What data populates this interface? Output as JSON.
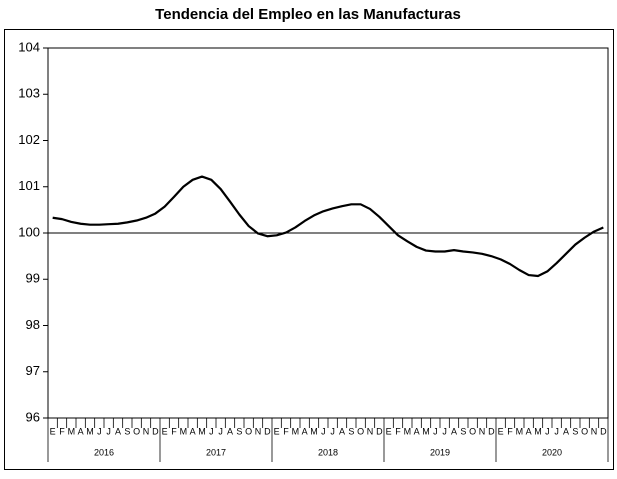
{
  "chart_data": {
    "type": "line",
    "title": "Tendencia del Empleo en las Manufacturas",
    "categories": [
      "E",
      "F",
      "M",
      "A",
      "M",
      "J",
      "J",
      "A",
      "S",
      "O",
      "N",
      "D",
      "E",
      "F",
      "M",
      "A",
      "M",
      "J",
      "J",
      "A",
      "S",
      "O",
      "N",
      "D",
      "E",
      "F",
      "M",
      "A",
      "M",
      "J",
      "J",
      "A",
      "S",
      "O",
      "N",
      "D",
      "E",
      "F",
      "M",
      "A",
      "M",
      "J",
      "J",
      "A",
      "S",
      "O",
      "N",
      "D",
      "E",
      "F",
      "M",
      "A",
      "M",
      "J",
      "J",
      "A",
      "S",
      "O",
      "N",
      "D"
    ],
    "years": [
      "2016",
      "2017",
      "2018",
      "2019",
      "2020"
    ],
    "values": [
      100.33,
      100.3,
      100.24,
      100.2,
      100.18,
      100.18,
      100.19,
      100.2,
      100.23,
      100.27,
      100.33,
      100.42,
      100.57,
      100.78,
      101.0,
      101.15,
      101.22,
      101.15,
      100.95,
      100.68,
      100.4,
      100.15,
      99.99,
      99.93,
      99.95,
      100.01,
      100.12,
      100.26,
      100.38,
      100.47,
      100.53,
      100.58,
      100.62,
      100.62,
      100.52,
      100.35,
      100.15,
      99.95,
      99.82,
      99.7,
      99.62,
      99.6,
      99.6,
      99.63,
      99.6,
      99.58,
      99.55,
      99.5,
      99.43,
      99.33,
      99.2,
      99.09,
      99.07,
      99.17,
      99.35,
      99.55,
      99.75,
      99.9,
      100.03,
      100.12
    ],
    "color": "#000000",
    "ylim": [
      96,
      104
    ],
    "yticks": [
      96,
      97,
      98,
      99,
      100,
      101,
      102,
      103,
      104
    ],
    "reference_line": 100
  }
}
